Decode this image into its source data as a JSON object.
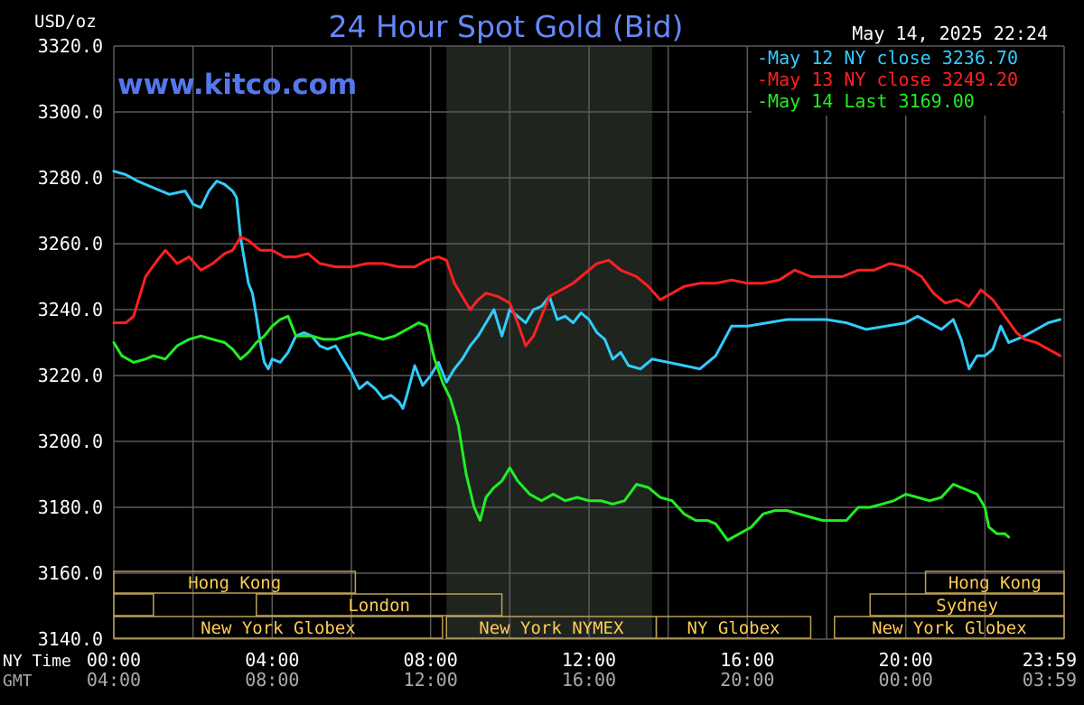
{
  "chart_data": {
    "type": "line",
    "title": "24 Hour Spot Gold (Bid)",
    "watermark": "www.kitco.com",
    "ylabel": "USD/oz",
    "timestamp": "May 14, 2025 22:24",
    "ylim": [
      3140,
      3320
    ],
    "y_ticks": [
      "3320.0",
      "3300.0",
      "3280.0",
      "3260.0",
      "3240.0",
      "3220.0",
      "3200.0",
      "3180.0",
      "3160.0",
      "3140.0"
    ],
    "y_tick_values": [
      3320,
      3300,
      3280,
      3260,
      3240,
      3220,
      3200,
      3180,
      3160,
      3140
    ],
    "x_ticks_ny": [
      "00:00",
      "04:00",
      "08:00",
      "12:00",
      "16:00",
      "20:00",
      "23:59"
    ],
    "x_ticks_gmt": [
      "04:00",
      "08:00",
      "12:00",
      "16:00",
      "20:00",
      "00:00",
      "03:59"
    ],
    "x_tick_hours": [
      0,
      4,
      8,
      12,
      16,
      20,
      24
    ],
    "x_row_label_ny": "NY Time",
    "x_row_label_gmt": "GMT",
    "xlim": [
      0,
      24
    ],
    "grid": true,
    "shaded_hours": [
      8.4,
      13.6
    ],
    "legend_position": "top-right",
    "series": [
      {
        "name": "May 12 NY close 3236.70",
        "color": "#33ccff",
        "points": [
          [
            0,
            3282
          ],
          [
            0.3,
            3281
          ],
          [
            0.6,
            3279
          ],
          [
            1,
            3277
          ],
          [
            1.4,
            3275
          ],
          [
            1.8,
            3276
          ],
          [
            2,
            3272
          ],
          [
            2.2,
            3271
          ],
          [
            2.4,
            3276
          ],
          [
            2.6,
            3279
          ],
          [
            2.8,
            3278
          ],
          [
            3,
            3276
          ],
          [
            3.1,
            3274
          ],
          [
            3.2,
            3262
          ],
          [
            3.3,
            3255
          ],
          [
            3.4,
            3248
          ],
          [
            3.5,
            3245
          ],
          [
            3.6,
            3238
          ],
          [
            3.7,
            3230
          ],
          [
            3.8,
            3224
          ],
          [
            3.9,
            3222
          ],
          [
            4,
            3225
          ],
          [
            4.2,
            3224
          ],
          [
            4.4,
            3227
          ],
          [
            4.6,
            3232
          ],
          [
            4.8,
            3233
          ],
          [
            5,
            3232
          ],
          [
            5.2,
            3229
          ],
          [
            5.4,
            3228
          ],
          [
            5.6,
            3229
          ],
          [
            5.8,
            3225
          ],
          [
            6,
            3221
          ],
          [
            6.2,
            3216
          ],
          [
            6.4,
            3218
          ],
          [
            6.6,
            3216
          ],
          [
            6.8,
            3213
          ],
          [
            7,
            3214
          ],
          [
            7.2,
            3212
          ],
          [
            7.3,
            3210
          ],
          [
            7.4,
            3214
          ],
          [
            7.6,
            3223
          ],
          [
            7.8,
            3217
          ],
          [
            8,
            3220
          ],
          [
            8.2,
            3224
          ],
          [
            8.4,
            3218
          ],
          [
            8.6,
            3222
          ],
          [
            8.8,
            3225
          ],
          [
            9,
            3229
          ],
          [
            9.2,
            3232
          ],
          [
            9.4,
            3236
          ],
          [
            9.6,
            3240
          ],
          [
            9.8,
            3232
          ],
          [
            10,
            3240
          ],
          [
            10.2,
            3238
          ],
          [
            10.4,
            3236
          ],
          [
            10.6,
            3240
          ],
          [
            10.8,
            3241
          ],
          [
            11,
            3244
          ],
          [
            11.2,
            3237
          ],
          [
            11.4,
            3238
          ],
          [
            11.6,
            3236
          ],
          [
            11.8,
            3239
          ],
          [
            12,
            3237
          ],
          [
            12.2,
            3233
          ],
          [
            12.4,
            3231
          ],
          [
            12.6,
            3225
          ],
          [
            12.8,
            3227
          ],
          [
            13,
            3223
          ],
          [
            13.3,
            3222
          ],
          [
            13.6,
            3225
          ],
          [
            14,
            3224
          ],
          [
            14.4,
            3223
          ],
          [
            14.8,
            3222
          ],
          [
            15.2,
            3226
          ],
          [
            15.6,
            3235
          ],
          [
            16,
            3235
          ],
          [
            16.5,
            3236
          ],
          [
            17,
            3237
          ],
          [
            17.5,
            3237
          ],
          [
            18,
            3237
          ],
          [
            18.5,
            3236
          ],
          [
            19,
            3234
          ],
          [
            19.5,
            3235
          ],
          [
            20,
            3236
          ],
          [
            20.3,
            3238
          ],
          [
            20.6,
            3236
          ],
          [
            20.9,
            3234
          ],
          [
            21.2,
            3237
          ],
          [
            21.4,
            3231
          ],
          [
            21.6,
            3222
          ],
          [
            21.8,
            3226
          ],
          [
            22,
            3226
          ],
          [
            22.2,
            3228
          ],
          [
            22.4,
            3235
          ],
          [
            22.6,
            3230
          ],
          [
            22.8,
            3231
          ],
          [
            23,
            3232
          ],
          [
            23.3,
            3234
          ],
          [
            23.6,
            3236
          ],
          [
            23.9,
            3237
          ]
        ]
      },
      {
        "name": "May 13 NY close 3249.20",
        "color": "#ff2020",
        "points": [
          [
            0,
            3236
          ],
          [
            0.3,
            3236
          ],
          [
            0.5,
            3238
          ],
          [
            0.8,
            3250
          ],
          [
            1.1,
            3255
          ],
          [
            1.3,
            3258
          ],
          [
            1.6,
            3254
          ],
          [
            1.9,
            3256
          ],
          [
            2.2,
            3252
          ],
          [
            2.5,
            3254
          ],
          [
            2.8,
            3257
          ],
          [
            3,
            3258
          ],
          [
            3.2,
            3262
          ],
          [
            3.4,
            3261
          ],
          [
            3.7,
            3258
          ],
          [
            4,
            3258
          ],
          [
            4.3,
            3256
          ],
          [
            4.6,
            3256
          ],
          [
            4.9,
            3257
          ],
          [
            5.2,
            3254
          ],
          [
            5.6,
            3253
          ],
          [
            6,
            3253
          ],
          [
            6.4,
            3254
          ],
          [
            6.8,
            3254
          ],
          [
            7.2,
            3253
          ],
          [
            7.6,
            3253
          ],
          [
            7.9,
            3255
          ],
          [
            8.2,
            3256
          ],
          [
            8.4,
            3255
          ],
          [
            8.6,
            3248
          ],
          [
            8.8,
            3244
          ],
          [
            9,
            3240
          ],
          [
            9.2,
            3243
          ],
          [
            9.4,
            3245
          ],
          [
            9.7,
            3244
          ],
          [
            10,
            3242
          ],
          [
            10.2,
            3236
          ],
          [
            10.4,
            3229
          ],
          [
            10.6,
            3232
          ],
          [
            10.8,
            3238
          ],
          [
            11,
            3244
          ],
          [
            11.3,
            3246
          ],
          [
            11.6,
            3248
          ],
          [
            11.9,
            3251
          ],
          [
            12.2,
            3254
          ],
          [
            12.5,
            3255
          ],
          [
            12.8,
            3252
          ],
          [
            13.2,
            3250
          ],
          [
            13.5,
            3247
          ],
          [
            13.8,
            3243
          ],
          [
            14.1,
            3245
          ],
          [
            14.4,
            3247
          ],
          [
            14.8,
            3248
          ],
          [
            15.2,
            3248
          ],
          [
            15.6,
            3249
          ],
          [
            16,
            3248
          ],
          [
            16.4,
            3248
          ],
          [
            16.8,
            3249
          ],
          [
            17.2,
            3252
          ],
          [
            17.6,
            3250
          ],
          [
            18,
            3250
          ],
          [
            18.4,
            3250
          ],
          [
            18.8,
            3252
          ],
          [
            19.2,
            3252
          ],
          [
            19.6,
            3254
          ],
          [
            20,
            3253
          ],
          [
            20.4,
            3250
          ],
          [
            20.7,
            3245
          ],
          [
            21,
            3242
          ],
          [
            21.3,
            3243
          ],
          [
            21.6,
            3241
          ],
          [
            21.9,
            3246
          ],
          [
            22.2,
            3243
          ],
          [
            22.5,
            3238
          ],
          [
            22.8,
            3233
          ],
          [
            23,
            3231
          ],
          [
            23.3,
            3230
          ],
          [
            23.6,
            3228
          ],
          [
            23.9,
            3226
          ]
        ]
      },
      {
        "name": "May 14 Last 3169.00",
        "color": "#22ee22",
        "points": [
          [
            0,
            3230
          ],
          [
            0.2,
            3226
          ],
          [
            0.5,
            3224
          ],
          [
            0.8,
            3225
          ],
          [
            1,
            3226
          ],
          [
            1.3,
            3225
          ],
          [
            1.6,
            3229
          ],
          [
            1.9,
            3231
          ],
          [
            2.2,
            3232
          ],
          [
            2.5,
            3231
          ],
          [
            2.8,
            3230
          ],
          [
            3,
            3228
          ],
          [
            3.2,
            3225
          ],
          [
            3.4,
            3227
          ],
          [
            3.6,
            3230
          ],
          [
            3.8,
            3232
          ],
          [
            4,
            3235
          ],
          [
            4.2,
            3237
          ],
          [
            4.4,
            3238
          ],
          [
            4.6,
            3232
          ],
          [
            4.8,
            3232
          ],
          [
            5,
            3232
          ],
          [
            5.3,
            3231
          ],
          [
            5.6,
            3231
          ],
          [
            5.9,
            3232
          ],
          [
            6.2,
            3233
          ],
          [
            6.5,
            3232
          ],
          [
            6.8,
            3231
          ],
          [
            7.1,
            3232
          ],
          [
            7.4,
            3234
          ],
          [
            7.7,
            3236
          ],
          [
            7.9,
            3235
          ],
          [
            8.1,
            3225
          ],
          [
            8.3,
            3218
          ],
          [
            8.5,
            3213
          ],
          [
            8.7,
            3205
          ],
          [
            8.9,
            3190
          ],
          [
            9.1,
            3180
          ],
          [
            9.25,
            3176
          ],
          [
            9.4,
            3183
          ],
          [
            9.6,
            3186
          ],
          [
            9.8,
            3188
          ],
          [
            10,
            3192
          ],
          [
            10.2,
            3188
          ],
          [
            10.5,
            3184
          ],
          [
            10.8,
            3182
          ],
          [
            11.1,
            3184
          ],
          [
            11.4,
            3182
          ],
          [
            11.7,
            3183
          ],
          [
            12,
            3182
          ],
          [
            12.3,
            3182
          ],
          [
            12.6,
            3181
          ],
          [
            12.9,
            3182
          ],
          [
            13.2,
            3187
          ],
          [
            13.5,
            3186
          ],
          [
            13.8,
            3183
          ],
          [
            14.1,
            3182
          ],
          [
            14.4,
            3178
          ],
          [
            14.7,
            3176
          ],
          [
            15,
            3176
          ],
          [
            15.2,
            3175
          ],
          [
            15.5,
            3170
          ],
          [
            15.8,
            3172
          ],
          [
            16.1,
            3174
          ],
          [
            16.4,
            3178
          ],
          [
            16.7,
            3179
          ],
          [
            17,
            3179
          ],
          [
            17.3,
            3178
          ],
          [
            17.6,
            3177
          ],
          [
            17.9,
            3176
          ],
          [
            18.2,
            3176
          ],
          [
            18.5,
            3176
          ],
          [
            18.8,
            3180
          ],
          [
            19.1,
            3180
          ],
          [
            19.4,
            3181
          ],
          [
            19.7,
            3182
          ],
          [
            20,
            3184
          ],
          [
            20.3,
            3183
          ],
          [
            20.6,
            3182
          ],
          [
            20.9,
            3183
          ],
          [
            21.2,
            3187
          ],
          [
            21.4,
            3186
          ],
          [
            21.6,
            3185
          ],
          [
            21.8,
            3184
          ],
          [
            22,
            3180
          ],
          [
            22.1,
            3174
          ],
          [
            22.3,
            3172
          ],
          [
            22.5,
            3172
          ],
          [
            22.6,
            3171
          ]
        ]
      }
    ],
    "sessions": [
      {
        "label": "Hong Kong",
        "start": 0,
        "end": 6.1,
        "row": 0
      },
      {
        "label": "",
        "start": 0,
        "end": 1,
        "row": 1
      },
      {
        "label": "London",
        "start": 3.6,
        "end": 9.8,
        "row": 1
      },
      {
        "label": "New York Globex",
        "start": 0,
        "end": 8.3,
        "row": 2
      },
      {
        "label": "New York NYMEX",
        "start": 8.4,
        "end": 13.7,
        "row": 2
      },
      {
        "label": "NY Globex",
        "start": 13.7,
        "end": 17.6,
        "row": 2
      },
      {
        "label": "Hong Kong",
        "start": 20.5,
        "end": 24,
        "row": 0
      },
      {
        "label": "Sydney",
        "start": 19.1,
        "end": 24,
        "row": 1
      },
      {
        "label": "New York Globex",
        "start": 18.2,
        "end": 24,
        "row": 2
      }
    ]
  },
  "colors": {
    "background": "#000000",
    "grid": "#5a5a5a",
    "shade": "#1f241f",
    "title": "#6688ff",
    "watermark": "#5577ee",
    "text": "#ffffff",
    "gmt_text": "#aaaaaa",
    "session_text": "#ffcc55",
    "session_border": "#bba055"
  }
}
